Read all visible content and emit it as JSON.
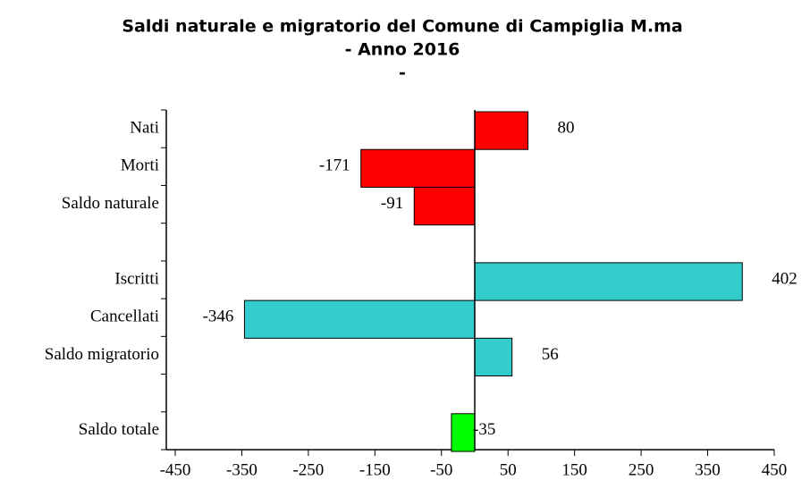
{
  "chart_data": {
    "type": "hbar",
    "title": [
      "Saldi naturale e migratorio del Comune di Campiglia M.ma",
      "- Anno 2016",
      "-"
    ],
    "categories": [
      "Nati",
      "Morti",
      "Saldo naturale",
      null,
      "Iscritti",
      "Cancellati",
      "Saldo migratorio",
      null,
      "Saldo totale"
    ],
    "values": [
      80,
      -171,
      -91,
      null,
      402,
      -346,
      56,
      null,
      -35
    ],
    "colors": [
      "#ff0000",
      "#ff0000",
      "#ff0000",
      null,
      "#33cccc",
      "#33cccc",
      "#33cccc",
      null,
      "#00ff00"
    ],
    "xlim": [
      -450,
      450
    ],
    "xticks": [
      -450,
      -350,
      -250,
      -150,
      -50,
      50,
      150,
      250,
      350,
      450
    ]
  }
}
